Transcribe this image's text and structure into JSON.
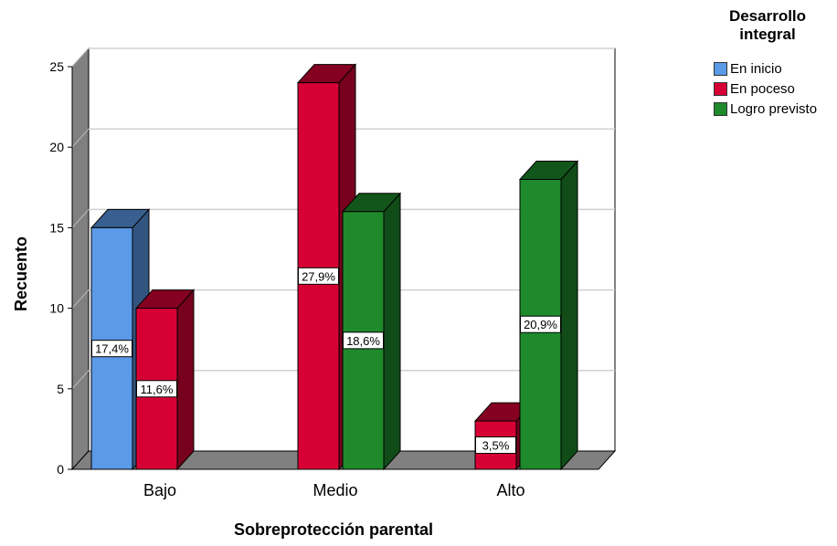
{
  "chart_data": {
    "type": "bar",
    "title": "",
    "xlabel": "Sobreprotección parental",
    "ylabel": "Recuento",
    "categories": [
      "Bajo",
      "Medio",
      "Alto"
    ],
    "ylim": [
      0,
      25
    ],
    "yticks": [
      0,
      5,
      10,
      15,
      20,
      25
    ],
    "grid": true,
    "legend_title": "Desarrollo integral",
    "legend_position": "top-right",
    "series": [
      {
        "name": "En inicio",
        "color": "#5a9ae6",
        "values": [
          15,
          0,
          0
        ],
        "labels": [
          "17,4%",
          "",
          ""
        ]
      },
      {
        "name": "En poceso",
        "color": "#d70035",
        "values": [
          10,
          24,
          3
        ],
        "labels": [
          "11,6%",
          "27,9%",
          "3,5%"
        ]
      },
      {
        "name": "Logro previsto",
        "color": "#1e8a2b",
        "values": [
          0,
          16,
          18
        ],
        "labels": [
          "",
          "18,6%",
          "20,9%"
        ]
      }
    ]
  }
}
